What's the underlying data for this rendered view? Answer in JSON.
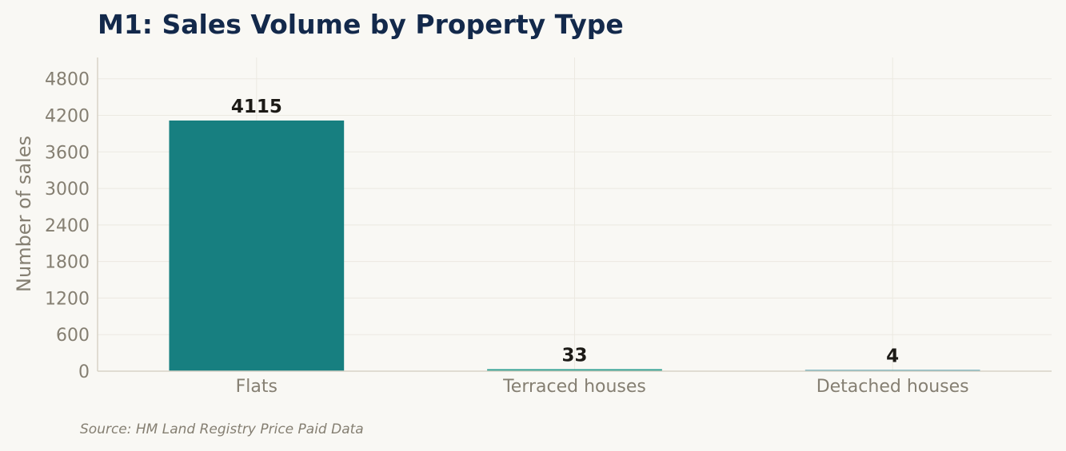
{
  "chart_data": {
    "type": "bar",
    "title": "M1: Sales Volume by Property Type",
    "xlabel": "",
    "ylabel": "Number of sales",
    "categories": [
      "Flats",
      "Terraced houses",
      "Detached houses"
    ],
    "values": [
      4115,
      33,
      4
    ],
    "data_labels": [
      "4115",
      "33",
      "4"
    ],
    "ylim": [
      0,
      5150
    ],
    "yticks": [
      0,
      600,
      1200,
      1800,
      2400,
      3000,
      3600,
      4200,
      4800
    ],
    "grid": true,
    "legend": "none",
    "colors": [
      "#177f80",
      "#2a9d8f",
      "#2a8a9e"
    ],
    "source": "Source: HM Land Registry Price Paid Data"
  }
}
